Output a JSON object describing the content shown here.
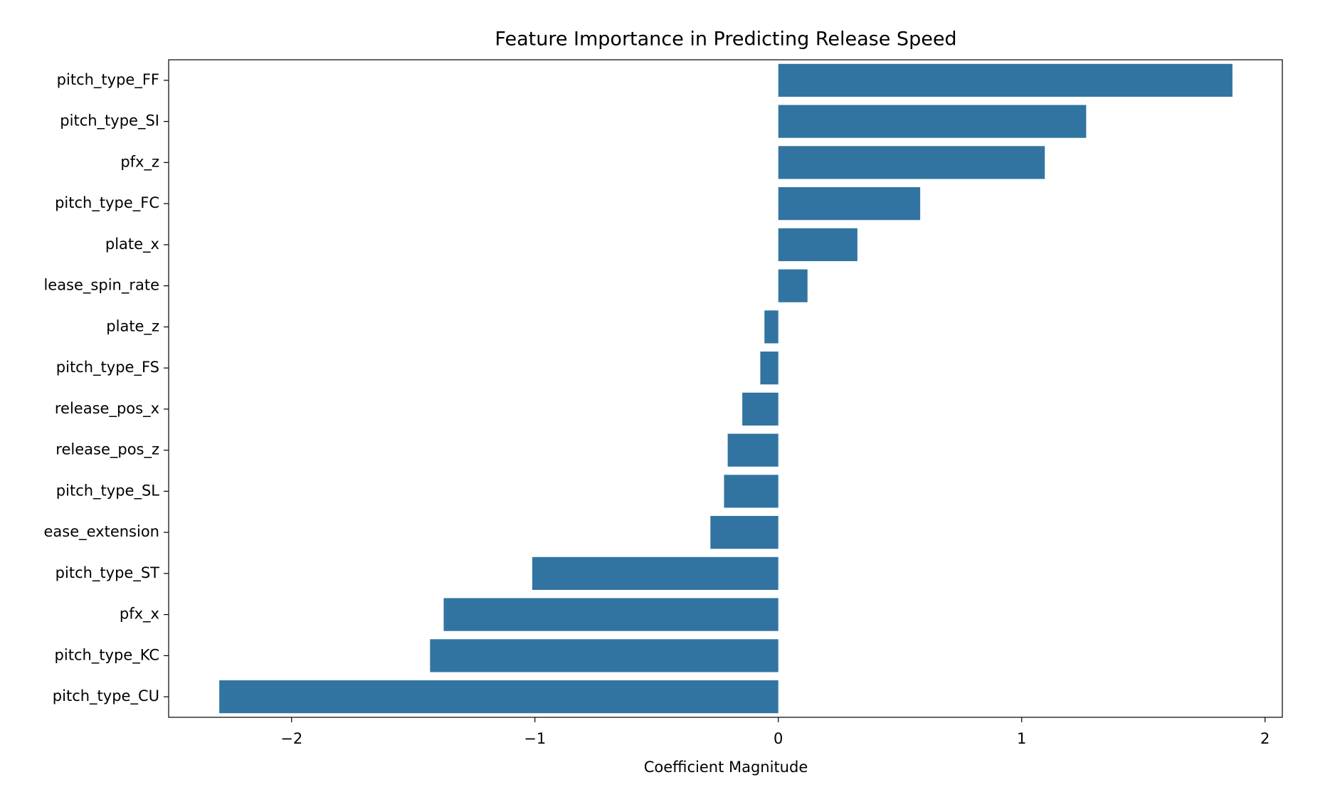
{
  "chart_data": {
    "type": "barh",
    "title": "Feature Importance in Predicting Release Speed",
    "xlabel": "Coefficient Magnitude",
    "categories": [
      "pitch_type_FF",
      "pitch_type_SI",
      "pfx_z",
      "pitch_type_FC",
      "plate_x",
      "lease_spin_rate",
      "plate_z",
      "pitch_type_FS",
      "release_pos_x",
      "release_pos_z",
      "pitch_type_SL",
      "ease_extension",
      "pitch_type_ST",
      "pfx_x",
      "pitch_type_KC",
      "pitch_type_CU"
    ],
    "values": [
      1.866,
      1.265,
      1.095,
      0.583,
      0.325,
      0.12,
      -0.057,
      -0.074,
      -0.148,
      -0.208,
      -0.223,
      -0.279,
      -1.011,
      -1.375,
      -1.431,
      -2.297
    ],
    "color": "#3274a1",
    "xlim": [
      -2.505,
      2.071
    ],
    "xticks": [
      {
        "value": -2,
        "label": "−2"
      },
      {
        "value": -1,
        "label": "−1"
      },
      0,
      1,
      2
    ]
  }
}
